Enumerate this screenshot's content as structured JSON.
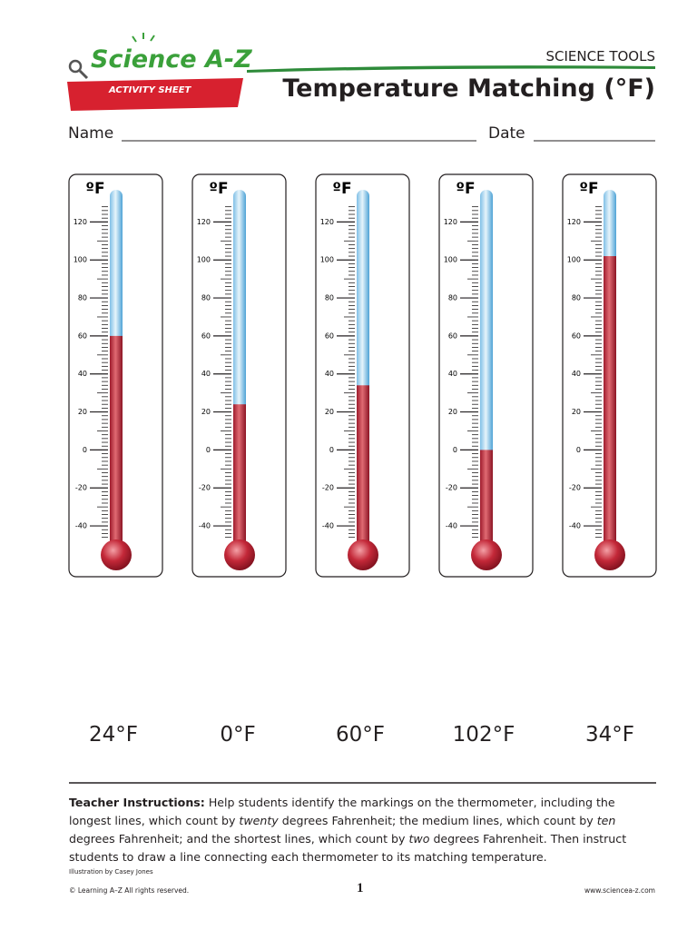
{
  "header": {
    "logo": "Science A-Z",
    "banner": "ACTIVITY SHEET",
    "series": "SCIENCE TOOLS",
    "title": "Temperature Matching (°F)"
  },
  "form": {
    "name": "Name",
    "date": "Date"
  },
  "scale": {
    "unit": "ºF",
    "range": [
      -50,
      135
    ],
    "ticks": [
      120,
      100,
      80,
      60,
      40,
      20,
      0,
      -20,
      -40
    ],
    "medium_step": 10,
    "minor_step": 2
  },
  "thermometers": [
    60,
    24,
    34,
    0,
    102
  ],
  "answers": [
    "24°F",
    "0°F",
    "60°F",
    "102°F",
    "34°F"
  ],
  "instructions": {
    "label": "Teacher Instructions:",
    "parts": [
      " Help students identify the markings on the thermometer, including the longest lines, which count by ",
      "twenty",
      " degrees Fahrenheit; the medium lines, which count by ",
      "ten",
      " degrees Fahrenheit; and the shortest lines, which count by ",
      "two",
      " degrees Fahrenheit. Then instruct students to draw a line connecting each thermometer to its matching temperature."
    ]
  },
  "footer": {
    "credit": "Illustration by Casey Jones",
    "copyright": "© Learning A–Z  All rights reserved.",
    "page": "1",
    "url": "www.sciencea-z.com"
  }
}
